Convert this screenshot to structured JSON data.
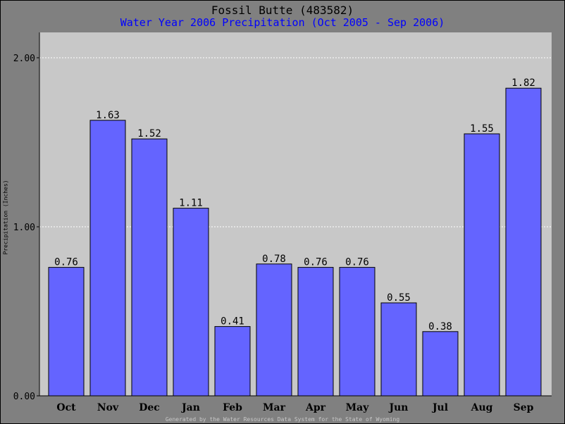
{
  "chart_data": {
    "type": "bar",
    "title": "Fossil Butte (483582)",
    "subtitle": "Water Year 2006 Precipitation (Oct 2005 - Sep 2006)",
    "ylabel": "Precipitation (Inches)",
    "xlabel": "",
    "categories": [
      "Oct",
      "Nov",
      "Dec",
      "Jan",
      "Feb",
      "Mar",
      "Apr",
      "May",
      "Jun",
      "Jul",
      "Aug",
      "Sep"
    ],
    "values": [
      0.76,
      1.63,
      1.52,
      1.11,
      0.41,
      0.78,
      0.76,
      0.76,
      0.55,
      0.38,
      1.55,
      1.82
    ],
    "value_labels": [
      "0.76",
      "1.63",
      "1.52",
      "1.11",
      "0.41",
      "0.78",
      "0.76",
      "0.76",
      "0.55",
      "0.38",
      "1.55",
      "1.82"
    ],
    "ylim": [
      0,
      2.0
    ],
    "yticks": [
      0,
      1,
      2
    ],
    "ytick_labels": [
      "0.00",
      "1.00",
      "2.00"
    ],
    "grid": true,
    "colors": {
      "bar": "#6464ff",
      "plot_background": "#c8c8c8",
      "page_background": "#808080",
      "subtitle": "#0000ff",
      "grid": "#ffffff"
    }
  },
  "footer": "Generated by the Water Resources Data System for the State of Wyoming"
}
